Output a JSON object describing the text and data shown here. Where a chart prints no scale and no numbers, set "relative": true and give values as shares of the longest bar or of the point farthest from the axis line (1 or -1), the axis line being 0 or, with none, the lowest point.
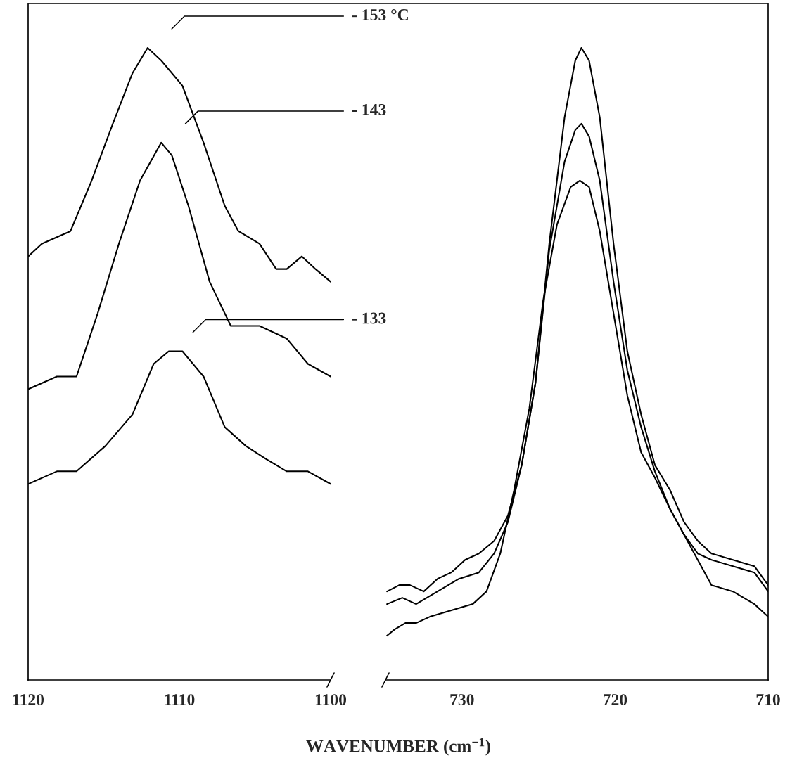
{
  "chart_data": [
    {
      "type": "line",
      "relative": true,
      "xlim": [
        1120,
        1100
      ],
      "xticks": [
        1120,
        1110,
        1100
      ],
      "tick_labels": "x",
      "xlabel": "WAVENUMBER (cm$^{−1}$)",
      "annotations": [
        "- 153 °C",
        "- 143",
        "- 133"
      ],
      "series": [
        {
          "color": "#000000",
          "x": [
            1120,
            1119.1,
            1117.2,
            1115.8,
            1114.4,
            1113.1,
            1112.1,
            1111.2,
            1109.8,
            1108.4,
            1107.0,
            1106.1,
            1104.7,
            1103.6,
            1102.9,
            1101.9,
            1101.0,
            1100
          ],
          "values": [
            0.67,
            0.69,
            0.71,
            0.79,
            0.88,
            0.96,
            1.0,
            0.98,
            0.94,
            0.85,
            0.75,
            0.71,
            0.69,
            0.65,
            0.65,
            0.67,
            0.65,
            0.63
          ]
        },
        {
          "color": "#000000",
          "x": [
            1120,
            1118.1,
            1116.8,
            1115.4,
            1114.0,
            1112.6,
            1111.2,
            1110.5,
            1109.4,
            1108.0,
            1106.6,
            1104.7,
            1102.9,
            1101.5,
            1100
          ],
          "values": [
            0.46,
            0.48,
            0.48,
            0.58,
            0.69,
            0.79,
            0.85,
            0.83,
            0.75,
            0.63,
            0.56,
            0.56,
            0.54,
            0.5,
            0.48
          ]
        },
        {
          "color": "#000000",
          "x": [
            1120,
            1118.1,
            1116.8,
            1114.9,
            1113.1,
            1111.7,
            1110.7,
            1109.8,
            1108.4,
            1107.0,
            1105.6,
            1104.3,
            1102.9,
            1101.5,
            1100
          ],
          "values": [
            0.31,
            0.33,
            0.33,
            0.37,
            0.42,
            0.5,
            0.52,
            0.52,
            0.48,
            0.4,
            0.37,
            0.35,
            0.33,
            0.33,
            0.31
          ]
        }
      ]
    },
    {
      "type": "line",
      "relative": true,
      "xlim": [
        735,
        710
      ],
      "xticks": [
        730,
        720,
        710
      ],
      "tick_labels": "x",
      "series": [
        {
          "color": "#000000",
          "x": [
            734.9,
            734.1,
            733.4,
            732.5,
            731.6,
            730.7,
            729.8,
            728.9,
            727.9,
            727.0,
            726.1,
            725.2,
            724.3,
            723.3,
            722.6,
            722.2,
            721.7,
            721.0,
            720.1,
            719.2,
            718.3,
            717.4,
            716.4,
            715.5,
            714.6,
            713.7,
            712.3,
            710.9,
            710
          ],
          "values": [
            0.14,
            0.15,
            0.15,
            0.14,
            0.16,
            0.17,
            0.19,
            0.2,
            0.22,
            0.26,
            0.34,
            0.47,
            0.69,
            0.89,
            0.98,
            1.0,
            0.98,
            0.89,
            0.69,
            0.52,
            0.42,
            0.34,
            0.3,
            0.25,
            0.22,
            0.2,
            0.19,
            0.18,
            0.15
          ]
        },
        {
          "color": "#000000",
          "x": [
            734.9,
            733.9,
            733.0,
            731.6,
            730.2,
            728.9,
            727.9,
            727.0,
            726.1,
            725.2,
            724.3,
            723.3,
            722.6,
            722.2,
            721.7,
            721.0,
            720.1,
            719.2,
            718.3,
            717.4,
            716.4,
            715.5,
            714.6,
            713.7,
            712.3,
            710.9,
            710
          ],
          "values": [
            0.12,
            0.13,
            0.12,
            0.14,
            0.16,
            0.17,
            0.2,
            0.25,
            0.34,
            0.47,
            0.68,
            0.82,
            0.87,
            0.88,
            0.86,
            0.79,
            0.63,
            0.49,
            0.4,
            0.33,
            0.27,
            0.23,
            0.2,
            0.19,
            0.18,
            0.17,
            0.14
          ]
        },
        {
          "color": "#000000",
          "x": [
            734.9,
            734.4,
            733.7,
            733.0,
            732.1,
            730.7,
            729.3,
            728.4,
            727.5,
            726.6,
            725.6,
            724.7,
            723.8,
            722.9,
            722.3,
            721.7,
            721.0,
            720.1,
            719.2,
            718.3,
            717.4,
            716.4,
            715.5,
            714.6,
            713.7,
            712.3,
            710.9,
            710
          ],
          "values": [
            0.07,
            0.08,
            0.09,
            0.09,
            0.1,
            0.11,
            0.12,
            0.14,
            0.2,
            0.3,
            0.43,
            0.6,
            0.72,
            0.78,
            0.79,
            0.78,
            0.71,
            0.58,
            0.45,
            0.36,
            0.32,
            0.27,
            0.23,
            0.19,
            0.15,
            0.14,
            0.12,
            0.1
          ]
        }
      ]
    }
  ]
}
